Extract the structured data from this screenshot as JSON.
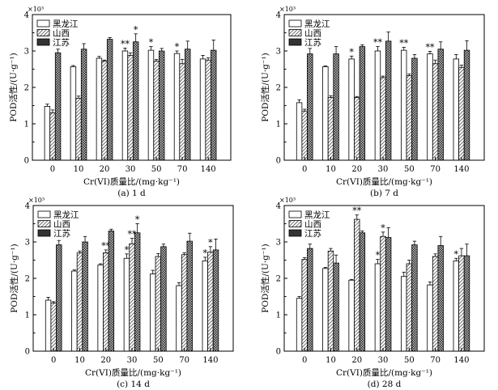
{
  "chart_data": [
    {
      "type": "bar",
      "caption": "(a) 1 d",
      "xlabel": "Cr(VI)质量比/(mg·kg⁻¹)",
      "ylabel": "POD活性/(U·g⁻¹)",
      "yscale_label": "×10³",
      "ylim": [
        0,
        4
      ],
      "yticks": [
        "0",
        "1",
        "2",
        "3",
        "4"
      ],
      "categories": [
        "0",
        "10",
        "20",
        "30",
        "50",
        "70",
        "140"
      ],
      "legend": [
        "黑龙江",
        "山西",
        "江苏"
      ],
      "series": [
        {
          "name": "黑龙江",
          "values": [
            1.48,
            2.57,
            2.8,
            3.0,
            3.02,
            2.93,
            2.78
          ],
          "errors": [
            0.06,
            0.03,
            0.05,
            0.08,
            0.1,
            0.07,
            0.1
          ],
          "marks": [
            "",
            "",
            "",
            "**",
            "*",
            "*",
            ""
          ]
        },
        {
          "name": "山西",
          "values": [
            1.3,
            1.7,
            2.72,
            2.88,
            2.72,
            2.65,
            2.75
          ],
          "errors": [
            0.08,
            0.06,
            0.03,
            0.07,
            0.05,
            0.12,
            0.06
          ],
          "marks": [
            "",
            "",
            "",
            "",
            "",
            "",
            ""
          ]
        },
        {
          "name": "江苏",
          "values": [
            2.95,
            3.05,
            3.32,
            3.25,
            3.0,
            3.05,
            3.02
          ],
          "errors": [
            0.1,
            0.15,
            0.05,
            0.22,
            0.07,
            0.22,
            0.28
          ],
          "marks": [
            "",
            "",
            "",
            "*",
            "",
            "",
            ""
          ]
        }
      ]
    },
    {
      "type": "bar",
      "caption": "(b) 7 d",
      "xlabel": "Cr(VI)质量比/(mg·kg⁻¹)",
      "ylabel": "POD活性/(U·g⁻¹)",
      "yscale_label": "×10³",
      "ylim": [
        0,
        4
      ],
      "yticks": [
        "0",
        "1",
        "2",
        "3",
        "4"
      ],
      "categories": [
        "0",
        "10",
        "20",
        "30",
        "50",
        "70",
        "140"
      ],
      "legend": [
        "黑龙江",
        "山西",
        "江苏"
      ],
      "series": [
        {
          "name": "黑龙江",
          "values": [
            1.58,
            2.57,
            2.78,
            3.0,
            3.02,
            2.92,
            2.78
          ],
          "errors": [
            0.08,
            0.02,
            0.08,
            0.12,
            0.08,
            0.07,
            0.12
          ],
          "marks": [
            "",
            "",
            "*",
            "**",
            "**",
            "**",
            ""
          ]
        },
        {
          "name": "山西",
          "values": [
            1.35,
            1.72,
            1.72,
            2.27,
            2.32,
            2.65,
            2.55
          ],
          "errors": [
            0.05,
            0.05,
            0.03,
            0.04,
            0.05,
            0.1,
            0.06
          ],
          "marks": [
            "",
            "",
            "",
            "",
            "",
            "",
            ""
          ]
        },
        {
          "name": "江苏",
          "values": [
            2.92,
            2.92,
            3.12,
            3.27,
            2.8,
            3.05,
            3.02
          ],
          "errors": [
            0.15,
            0.2,
            0.05,
            0.25,
            0.1,
            0.2,
            0.26
          ],
          "marks": [
            "",
            "",
            "",
            "",
            "",
            "",
            ""
          ]
        }
      ]
    },
    {
      "type": "bar",
      "caption": "(c) 14 d",
      "xlabel": "Cr(VI)质量比/(mg·kg⁻¹)",
      "ylabel": "POD活性/(U·g⁻¹)",
      "yscale_label": "×10³",
      "ylim": [
        0,
        4
      ],
      "yticks": [
        "0",
        "1",
        "2",
        "3",
        "4"
      ],
      "categories": [
        "0",
        "10",
        "20",
        "30",
        "50",
        "70",
        "140"
      ],
      "legend": [
        "黑龙江",
        "山西",
        "江苏"
      ],
      "series": [
        {
          "name": "黑龙江",
          "values": [
            1.4,
            2.2,
            2.37,
            2.55,
            2.12,
            1.8,
            2.48
          ],
          "errors": [
            0.08,
            0.03,
            0.03,
            0.12,
            0.1,
            0.08,
            0.1
          ],
          "marks": [
            "",
            "",
            "",
            "*",
            "",
            "",
            "*"
          ]
        },
        {
          "name": "山西",
          "values": [
            1.32,
            2.7,
            2.7,
            2.95,
            2.6,
            2.65,
            2.72
          ],
          "errors": [
            0.04,
            0.05,
            0.08,
            0.15,
            0.08,
            0.05,
            0.15
          ],
          "marks": [
            "",
            "",
            "**",
            "**",
            "",
            "",
            "*"
          ]
        },
        {
          "name": "江苏",
          "values": [
            2.92,
            3.0,
            3.3,
            3.25,
            2.87,
            3.02,
            2.78
          ],
          "errors": [
            0.12,
            0.15,
            0.05,
            0.25,
            0.07,
            0.22,
            0.3
          ],
          "marks": [
            "",
            "",
            "",
            "*",
            "",
            "",
            ""
          ]
        }
      ]
    },
    {
      "type": "bar",
      "caption": "(d) 28 d",
      "xlabel": "Cr(VI)质量比/(mg·kg⁻¹)",
      "ylabel": "POD活性/(U·g⁻¹)",
      "yscale_label": "×10³",
      "ylim": [
        0,
        4
      ],
      "yticks": [
        "0",
        "1",
        "2",
        "3",
        "4"
      ],
      "categories": [
        "0",
        "10",
        "20",
        "30",
        "50",
        "70",
        "140"
      ],
      "legend": [
        "黑龙江",
        "山西",
        "江苏"
      ],
      "series": [
        {
          "name": "黑龙江",
          "values": [
            1.45,
            2.27,
            1.95,
            2.4,
            2.05,
            1.82,
            2.48
          ],
          "errors": [
            0.05,
            0.03,
            0.02,
            0.12,
            0.12,
            0.08,
            0.07
          ],
          "marks": [
            "",
            "",
            "",
            "*",
            "",
            "",
            "*"
          ]
        },
        {
          "name": "山西",
          "values": [
            2.52,
            2.75,
            3.62,
            3.15,
            2.4,
            2.6,
            2.62
          ],
          "errors": [
            0.05,
            0.07,
            0.12,
            0.12,
            0.1,
            0.07,
            0.2
          ],
          "marks": [
            "",
            "",
            "**",
            "*",
            "",
            "",
            ""
          ]
        },
        {
          "name": "江苏",
          "values": [
            2.82,
            2.42,
            3.25,
            3.12,
            2.92,
            2.9,
            2.62
          ],
          "errors": [
            0.12,
            0.22,
            0.05,
            0.27,
            0.1,
            0.25,
            0.32
          ],
          "marks": [
            "",
            "",
            "",
            "",
            "",
            "",
            ""
          ]
        }
      ]
    }
  ]
}
